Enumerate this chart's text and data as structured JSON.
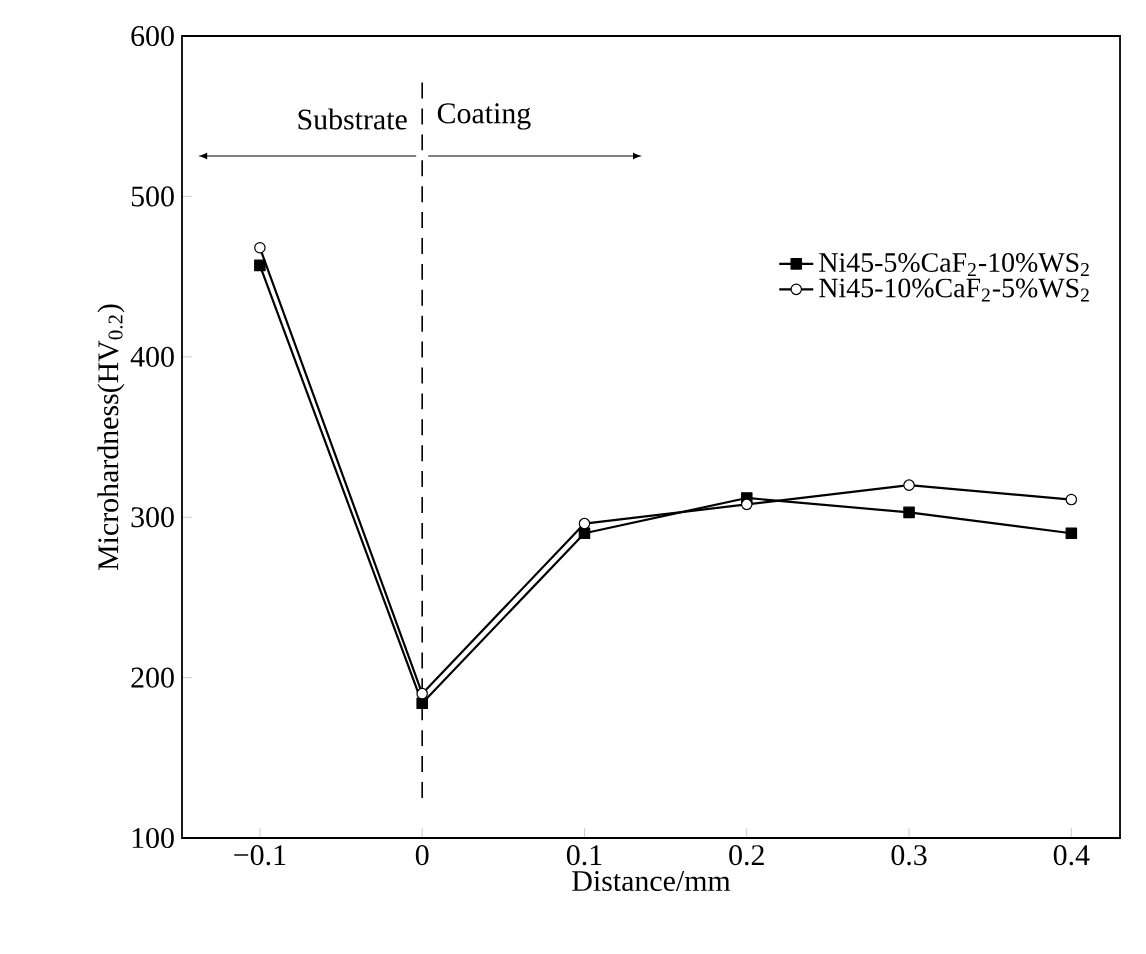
{
  "chart_data": {
    "type": "line",
    "xlabel": "Distance/mm",
    "ylabel": "Microhardness(HV$_{0.2}$)",
    "x": [
      -0.1,
      0,
      0.1,
      0.2,
      0.3,
      0.4
    ],
    "series": [
      {
        "name": "Ni45-5%CaF$_{2}$-10%WS$_{2}$",
        "color": "#000000",
        "marker": "square",
        "values": [
          457,
          184,
          290,
          312,
          303,
          290
        ]
      },
      {
        "name": "Ni45-10%CaF$_{2}$-5%WS$_{2}$",
        "color": "#000000",
        "marker": "circle",
        "values": [
          468,
          190,
          296,
          308,
          320,
          311
        ]
      }
    ],
    "xlim": [
      -0.148,
      0.43
    ],
    "ylim": [
      100,
      600
    ],
    "xticks": [
      {
        "value": -0.1,
        "label": "−0.1"
      },
      0,
      0.1,
      0.2,
      0.3,
      0.4
    ],
    "yticks": [
      100,
      200,
      300,
      400,
      500,
      600
    ],
    "ref_lines": [
      {
        "axis": "x",
        "value": 0,
        "line_style": "dashed",
        "color": "#000000"
      }
    ],
    "annotations": [
      "Substrate",
      "Coating"
    ],
    "legend": "right",
    "grid": false,
    "line_style": "solid"
  }
}
